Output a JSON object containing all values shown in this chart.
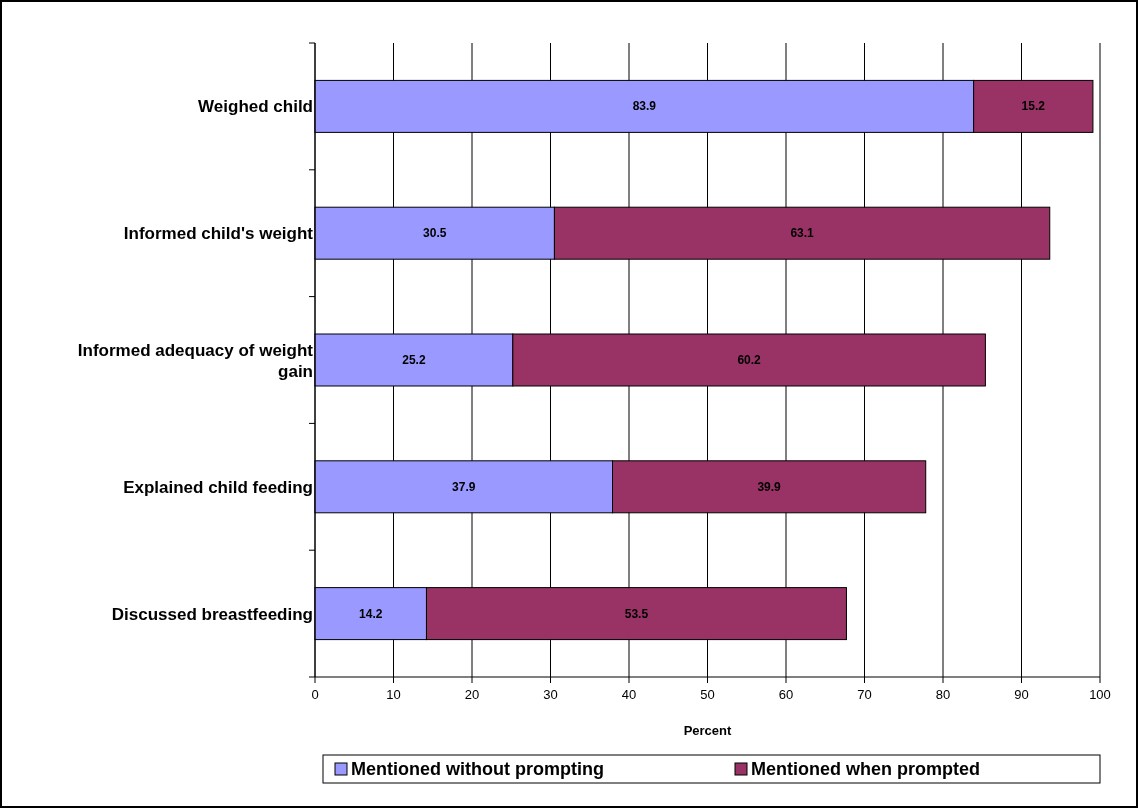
{
  "chart_data": {
    "type": "bar",
    "orientation": "horizontal",
    "stacked": true,
    "xlabel": "Percent",
    "categories": [
      "Weighed child",
      "Informed child's weight",
      "Informed adequacy of weight gain",
      "Explained child feeding",
      "Discussed breastfeeding"
    ],
    "series": [
      {
        "name": "Mentioned without prompting",
        "color": "#9999ff",
        "values": [
          83.9,
          30.5,
          25.2,
          37.9,
          14.2
        ]
      },
      {
        "name": "Mentioned when prompted",
        "color": "#993366",
        "values": [
          15.2,
          63.1,
          60.2,
          39.9,
          53.5
        ]
      }
    ],
    "xlim": [
      0,
      100
    ],
    "xticks": [
      0,
      10,
      20,
      30,
      40,
      50,
      60,
      70,
      80,
      90,
      100
    ],
    "grid": "x",
    "data_labels": true,
    "legend": "bottom"
  }
}
